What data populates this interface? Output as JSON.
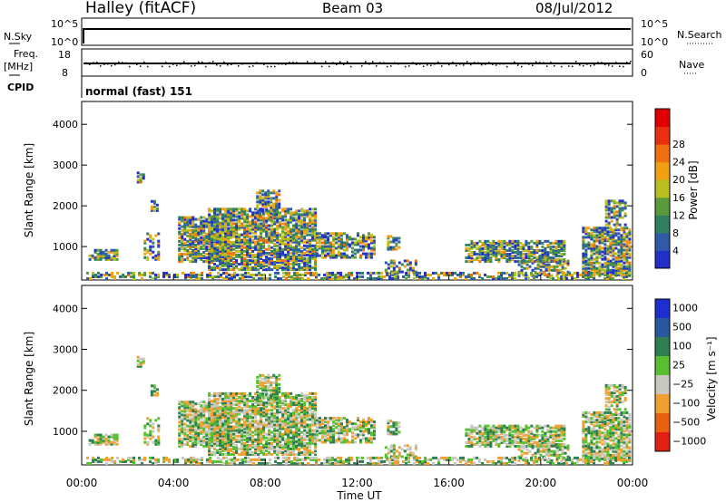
{
  "header": {
    "station": "Halley (fitACF)",
    "beam": "Beam 03",
    "date": "08/Jul/2012"
  },
  "nsky_panel": {
    "left_label": "N.Sky",
    "right_label": "N.Search",
    "left_ticks": [
      "10^5",
      "10^0"
    ],
    "right_ticks": [
      "10^5",
      "10^0"
    ]
  },
  "freq_panel": {
    "left_label_1": "Freq.",
    "left_label_2": "[MHz]",
    "right_label": "Nave",
    "left_ticks": [
      "18",
      "8"
    ],
    "right_ticks": [
      "60",
      "0"
    ]
  },
  "cpid_panel": {
    "label": "CPID",
    "value": "normal (fast) 151"
  },
  "colors": {
    "power": [
      "#2230c8",
      "#2e5aa8",
      "#2e8060",
      "#5a9a3a",
      "#b8c020",
      "#f0a010",
      "#f07010",
      "#e83010",
      "#e00000"
    ],
    "velocity": [
      "#1e2ed0",
      "#2a58a0",
      "#2e8050",
      "#58c030",
      "#c8c8c0",
      "#f0a030",
      "#e86010",
      "#e02010"
    ]
  },
  "chart_data": [
    {
      "type": "heatmap",
      "name": "power-panel",
      "xlabel": "",
      "ylabel": "Slant Range [km]",
      "y_ticks": [
        "1000",
        "2000",
        "3000",
        "4000"
      ],
      "x_range_hours": [
        0,
        24
      ],
      "y_range_km": [
        180,
        4560
      ],
      "colorbar": {
        "label": "Power [dB]",
        "ticks": [
          "4",
          "8",
          "12",
          "16",
          "20",
          "24",
          "28"
        ]
      }
    },
    {
      "type": "heatmap",
      "name": "velocity-panel",
      "xlabel": "Time UT",
      "ylabel": "Slant Range [km]",
      "x_ticks": [
        "00:00",
        "04:00",
        "08:00",
        "12:00",
        "16:00",
        "20:00",
        "00:00"
      ],
      "y_ticks": [
        "1000",
        "2000",
        "3000",
        "4000"
      ],
      "x_range_hours": [
        0,
        24
      ],
      "y_range_km": [
        180,
        4560
      ],
      "colorbar": {
        "label": "Velocity [m s⁻¹]",
        "ticks": [
          "1000",
          "500",
          "100",
          "25",
          "−25",
          "−100",
          "−500",
          "−1000"
        ]
      }
    }
  ]
}
